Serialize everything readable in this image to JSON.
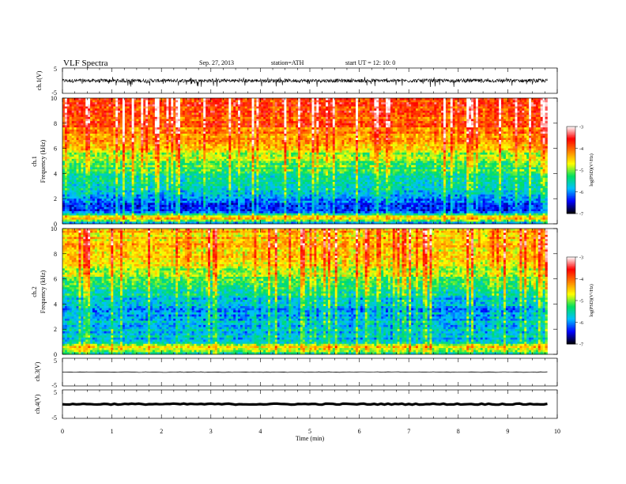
{
  "header": {
    "title": "VLF  Spectra",
    "date": "Sep. 27, 2013",
    "station": "station=ATH",
    "start": "start  UT  =   12: 10: 0"
  },
  "chart_data": [
    {
      "type": "line",
      "panel": "ch1-waveform",
      "ylabel": "ch.1(V)",
      "ylim": [
        -5,
        5
      ],
      "yticks": [
        "5",
        "-5"
      ],
      "xlim": [
        0,
        9.8
      ],
      "baseline": 0,
      "amplitude_range": [
        -2.5,
        1.5
      ],
      "color": "#000000"
    },
    {
      "type": "heatmap",
      "panel": "ch1-spectrogram",
      "ylabel": "ch.1\nFrequency (kHz)",
      "ylim": [
        0,
        10
      ],
      "yticks": [
        "0",
        "2",
        "4",
        "6",
        "8",
        "10"
      ],
      "xlim": [
        0,
        9.8
      ],
      "zlabel": "log(PSD)(V²/Hz)",
      "zlim": [
        -7,
        -3
      ],
      "zticks": [
        "-3",
        "-4",
        "-5",
        "-6",
        "-7"
      ],
      "colormap": [
        "#000000",
        "#0000ff",
        "#00c0ff",
        "#00e060",
        "#ffff00",
        "#ff8000",
        "#ff0000",
        "#ffffff"
      ],
      "profile_khz_to_logpsd": [
        [
          0,
          -6.0
        ],
        [
          0.5,
          -4.3
        ],
        [
          1,
          -6.4
        ],
        [
          2,
          -6.1
        ],
        [
          3,
          -5.6
        ],
        [
          4,
          -5.4
        ],
        [
          5,
          -5.0
        ],
        [
          6,
          -4.6
        ],
        [
          7,
          -4.2
        ],
        [
          8,
          -3.9
        ],
        [
          9,
          -3.8
        ],
        [
          10,
          -3.8
        ]
      ]
    },
    {
      "type": "heatmap",
      "panel": "ch2-spectrogram",
      "ylabel": "ch.2\nFrequency (kHz)",
      "ylim": [
        0,
        10
      ],
      "yticks": [
        "0",
        "2",
        "4",
        "6",
        "8",
        "10"
      ],
      "xlim": [
        0,
        9.8
      ],
      "zlabel": "log(PSD)(V²/Hz)",
      "zlim": [
        -7,
        -3
      ],
      "zticks": [
        "-3",
        "-4",
        "-5",
        "-6",
        "-7"
      ],
      "colormap": [
        "#000000",
        "#0000ff",
        "#00c0ff",
        "#00e060",
        "#ffff00",
        "#ff8000",
        "#ff0000",
        "#ffffff"
      ],
      "profile_khz_to_logpsd": [
        [
          0,
          -5.4
        ],
        [
          0.5,
          -4.6
        ],
        [
          1,
          -5.6
        ],
        [
          2,
          -5.8
        ],
        [
          3,
          -5.8
        ],
        [
          4,
          -5.8
        ],
        [
          5,
          -5.4
        ],
        [
          6,
          -5.0
        ],
        [
          7,
          -4.7
        ],
        [
          8,
          -4.5
        ],
        [
          9,
          -4.4
        ],
        [
          10,
          -4.4
        ]
      ]
    },
    {
      "type": "line",
      "panel": "ch3-waveform",
      "ylabel": "ch.3(V)",
      "ylim": [
        -5,
        5
      ],
      "yticks": [
        "5",
        "-5"
      ],
      "xlim": [
        0,
        9.8
      ],
      "baseline": 0,
      "amplitude_range": [
        -0.1,
        0.1
      ],
      "color": "#000000"
    },
    {
      "type": "line",
      "panel": "ch4-waveform",
      "ylabel": "ch.4(V)",
      "ylim": [
        -5,
        5
      ],
      "yticks": [
        "5",
        "-5"
      ],
      "xlim": [
        0,
        9.8
      ],
      "baseline": 0,
      "amplitude_range": [
        -0.2,
        0.2
      ],
      "color": "#000000"
    }
  ],
  "xaxis": {
    "label": "Time  (min)",
    "range": [
      0,
      10
    ],
    "ticks": [
      "0",
      "1",
      "2",
      "3",
      "4",
      "5",
      "6",
      "7",
      "8",
      "9",
      "10"
    ]
  }
}
